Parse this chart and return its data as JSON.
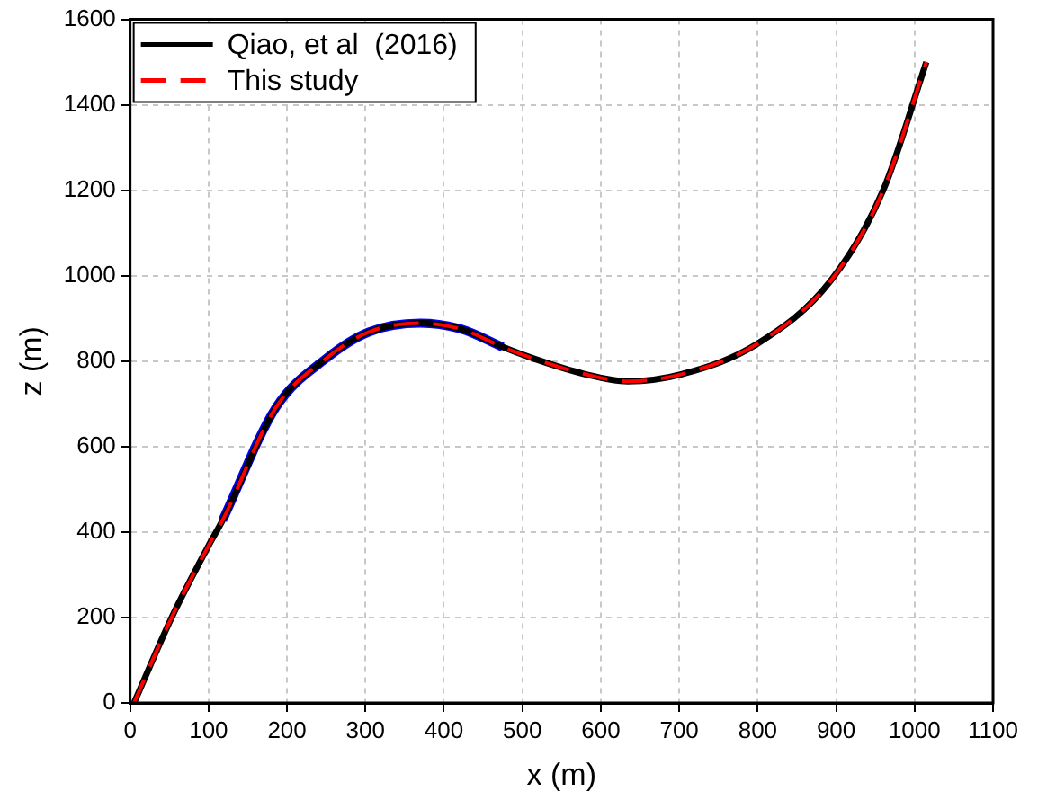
{
  "chart_data": {
    "type": "line",
    "xlabel": "x (m)",
    "ylabel": "z (m)",
    "xlim": [
      0,
      1100
    ],
    "xticks": [
      0,
      100,
      200,
      300,
      400,
      500,
      600,
      700,
      800,
      900,
      1000,
      1100
    ],
    "ylim": [
      0,
      1600
    ],
    "yticks": [
      0,
      200,
      400,
      600,
      800,
      1000,
      1200,
      1400,
      1600
    ],
    "grid": true,
    "legend": "top left",
    "marker": "none",
    "series": [
      {
        "name": "Qiao, et al  (2016)",
        "color": "#000000",
        "line_style": "solid",
        "x": [
          5,
          53,
          100,
          118,
          186,
          249,
          304,
          370,
          422,
          475,
          516,
          579,
          634,
          704,
          799,
          893,
          960,
          1015
        ],
        "values": [
          0,
          200,
          368,
          428,
          692,
          805,
          868,
          889,
          875,
          833,
          805,
          770,
          753,
          770,
          840,
          988,
          1200,
          1500
        ]
      },
      {
        "name": "This study",
        "color": "#ff0000",
        "line_style": "dashed",
        "x": [
          5,
          53,
          100,
          118,
          186,
          249,
          304,
          370,
          422,
          475,
          516,
          579,
          634,
          704,
          799,
          893,
          960,
          1015
        ],
        "values": [
          0,
          200,
          368,
          428,
          692,
          805,
          868,
          889,
          875,
          833,
          805,
          770,
          753,
          770,
          840,
          988,
          1200,
          1500
        ]
      },
      {
        "color": "#0000ff",
        "line_style": "solid",
        "x": [
          118,
          186,
          249,
          304,
          370,
          422,
          475
        ],
        "values": [
          428,
          692,
          805,
          868,
          889,
          875,
          833
        ]
      }
    ]
  }
}
